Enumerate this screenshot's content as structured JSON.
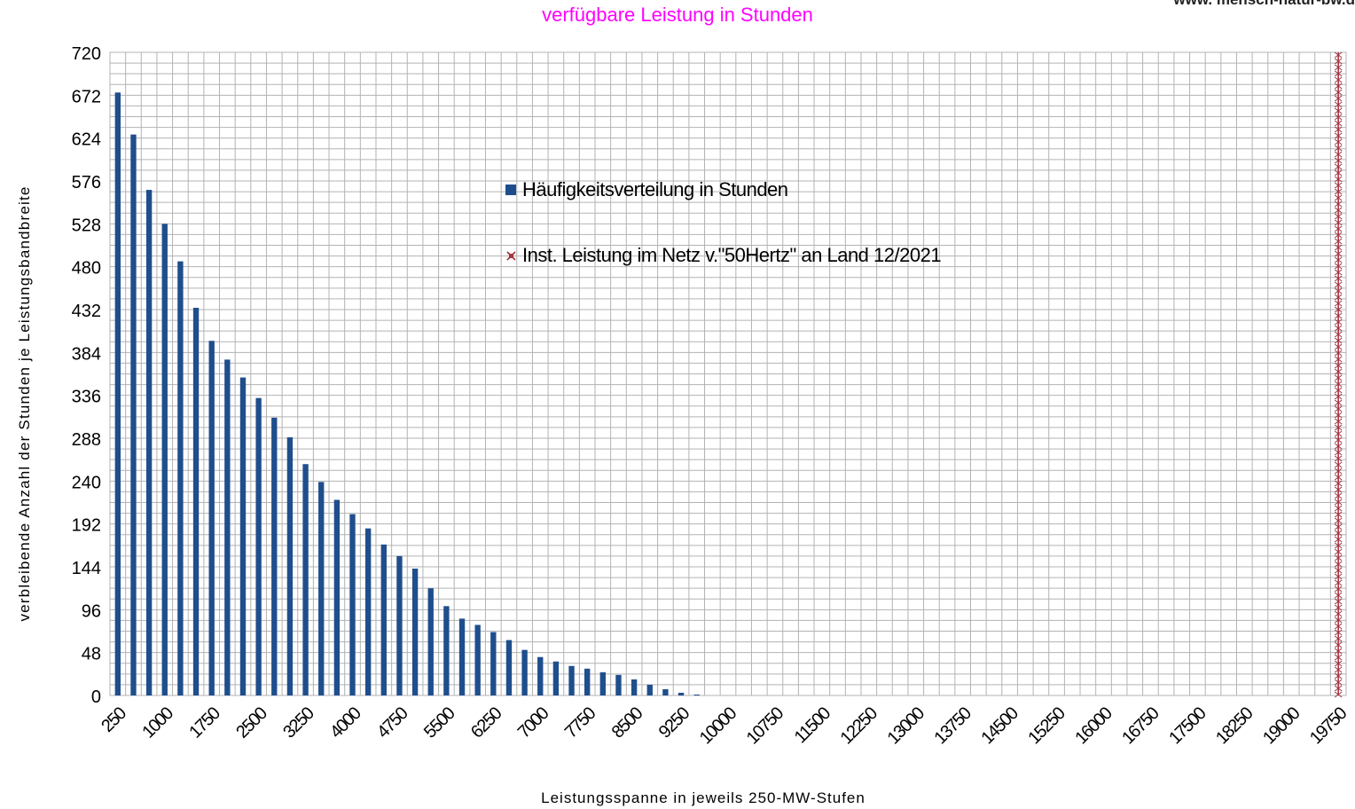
{
  "title": "verfügbare Leistung in Stunden",
  "watermark": "www. mensch-natur-bw.d",
  "colors": {
    "bars": "#1f4e8c",
    "marker": "#a03040",
    "title": "#ff00ff",
    "grid": "#b3b3b3"
  },
  "chart_data": {
    "type": "bar",
    "title": "verfügbare Leistung in Stunden",
    "xlabel": "Leistungsspanne in jeweils 250-MW-Stufen",
    "ylabel": "verbleibende Anzahl der Stunden je Leistungsbandbreite",
    "ylim": [
      0,
      720
    ],
    "yticks": [
      0,
      48,
      96,
      144,
      192,
      240,
      288,
      336,
      384,
      432,
      480,
      528,
      576,
      624,
      672,
      720
    ],
    "xticks": [
      "250",
      "1000",
      "1750",
      "2500",
      "3250",
      "4000",
      "4750",
      "5500",
      "6250",
      "7000",
      "7750",
      "8500",
      "9250",
      "10000",
      "10750",
      "11500",
      "12250",
      "13000",
      "13750",
      "14500",
      "15250",
      "16000",
      "16750",
      "17500",
      "18250",
      "19000",
      "19750"
    ],
    "categories": [
      250,
      500,
      750,
      1000,
      1250,
      1500,
      1750,
      2000,
      2250,
      2500,
      2750,
      3000,
      3250,
      3500,
      3750,
      4000,
      4250,
      4500,
      4750,
      5000,
      5250,
      5500,
      5750,
      6000,
      6250,
      6500,
      6750,
      7000,
      7250,
      7500,
      7750,
      8000,
      8250,
      8500,
      8750,
      9000,
      9250,
      9500,
      9750,
      10000,
      10250,
      10500,
      10750,
      11000,
      11250,
      11500,
      11750,
      12000,
      12250,
      12500,
      12750,
      13000,
      13250,
      13500,
      13750,
      14000,
      14250,
      14500,
      14750,
      15000,
      15250,
      15500,
      15750,
      16000,
      16250,
      16500,
      16750,
      17000,
      17250,
      17500,
      17750,
      18000,
      18250,
      18500,
      18750,
      19000,
      19250,
      19500,
      19750
    ],
    "grid": true,
    "series": [
      {
        "name": "Häufigkeitsverteilung in Stunden",
        "values": [
          675,
          628,
          566,
          528,
          486,
          434,
          397,
          376,
          356,
          333,
          311,
          289,
          259,
          239,
          219,
          203,
          187,
          169,
          156,
          142,
          120,
          100,
          86,
          79,
          71,
          62,
          51,
          43,
          38,
          33,
          30,
          26,
          23,
          18,
          12,
          7,
          3,
          1,
          0,
          0,
          0,
          0,
          0,
          0,
          0,
          0,
          0,
          0,
          0,
          0,
          0,
          0,
          0,
          0,
          0,
          0,
          0,
          0,
          0,
          0,
          0,
          0,
          0,
          0,
          0,
          0,
          0,
          0,
          0,
          0,
          0,
          0,
          0,
          0,
          0,
          0,
          0,
          0,
          0
        ]
      },
      {
        "name": "Inst. Leistung im Netz v.\"50Hertz\" an Land 12/2021",
        "x": 19750,
        "marker": "x"
      }
    ],
    "legend": "inside-center"
  }
}
